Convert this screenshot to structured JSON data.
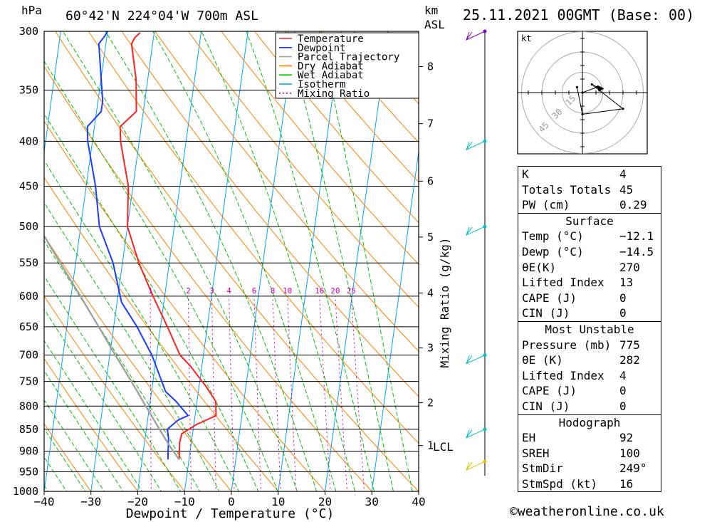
{
  "header": {
    "hpa_label": "hPa",
    "location": "60°42'N  224°04'W  700m  ASL",
    "km_label": "km",
    "asl_label": "ASL",
    "date": "25.11.2021  00GMT  (Base: 00)"
  },
  "axes": {
    "xlabel": "Dewpoint / Temperature (°C)",
    "mixing_label": "Mixing Ratio (g/kg)",
    "lcl_label": "LCL"
  },
  "copyright": "©weatheronline.co.uk",
  "hodograph": {
    "unit_label": "kt",
    "ring_labels": [
      "15",
      "30",
      "45"
    ]
  },
  "colors": {
    "temperature": "#ff2020",
    "dewpoint": "#1a3cff",
    "parcel": "#a0a0a0",
    "dry_adiabat": "#ff8000",
    "wet_adiabat": "#00c000",
    "isotherm": "#00a0ff",
    "mixing_ratio": "#cc00aa",
    "wind_barb": "#00c0c0"
  },
  "chart_data": {
    "type": "line",
    "title": "60°42'N  224°04'W  700m  ASL",
    "xlabel": "Dewpoint / Temperature (°C)",
    "ylabel": "hPa",
    "xlim": [
      -40,
      40
    ],
    "ylim": [
      1000,
      300
    ],
    "x_ticks": [
      -40,
      -30,
      -20,
      -10,
      0,
      10,
      20,
      30,
      40
    ],
    "pressure_ticks": [
      300,
      350,
      400,
      450,
      500,
      550,
      600,
      650,
      700,
      750,
      800,
      850,
      900,
      950,
      1000
    ],
    "km_ticks": [
      {
        "label": "8",
        "p": 329
      },
      {
        "label": "7",
        "p": 382
      },
      {
        "label": "6",
        "p": 444
      },
      {
        "label": "5",
        "p": 514
      },
      {
        "label": "4",
        "p": 595
      },
      {
        "label": "3",
        "p": 687
      },
      {
        "label": "2",
        "p": 793
      },
      {
        "label": "1",
        "p": 887
      }
    ],
    "lcl_pressure": 887,
    "mixing_ratio_labels": [
      "1",
      "2",
      "3",
      "4",
      "6",
      "8",
      "10",
      "16",
      "20",
      "25"
    ],
    "mixing_ratio_label_p": 600,
    "legend": [
      "Temperature",
      "Dewpoint",
      "Parcel Trajectory",
      "Dry Adiabat",
      "Wet Adiabat",
      "Isotherm",
      "Mixing Ratio"
    ],
    "legend_position": "top-right",
    "series": [
      {
        "name": "Temperature",
        "points": [
          [
            920,
            -12.1
          ],
          [
            880,
            -12.5
          ],
          [
            860,
            -12.3
          ],
          [
            840,
            -9.5
          ],
          [
            820,
            -5.5
          ],
          [
            790,
            -6.0
          ],
          [
            760,
            -8.5
          ],
          [
            720,
            -12.5
          ],
          [
            700,
            -15.0
          ],
          [
            650,
            -18.5
          ],
          [
            600,
            -22.5
          ],
          [
            550,
            -26.5
          ],
          [
            500,
            -30.0
          ],
          [
            450,
            -31.0
          ],
          [
            400,
            -34.0
          ],
          [
            385,
            -34.5
          ],
          [
            370,
            -31.5
          ],
          [
            340,
            -32.5
          ],
          [
            310,
            -34.5
          ],
          [
            305,
            -34.0
          ],
          [
            301,
            -33.0
          ]
        ]
      },
      {
        "name": "Dewpoint",
        "points": [
          [
            920,
            -14.5
          ],
          [
            870,
            -15.0
          ],
          [
            850,
            -15.5
          ],
          [
            830,
            -13.5
          ],
          [
            820,
            -11.5
          ],
          [
            790,
            -14.5
          ],
          [
            770,
            -17.0
          ],
          [
            700,
            -21.0
          ],
          [
            650,
            -25.0
          ],
          [
            610,
            -29.0
          ],
          [
            600,
            -29.5
          ],
          [
            550,
            -32.0
          ],
          [
            500,
            -36.0
          ],
          [
            450,
            -38.0
          ],
          [
            400,
            -41.0
          ],
          [
            385,
            -41.5
          ],
          [
            370,
            -39.0
          ],
          [
            360,
            -39.0
          ],
          [
            310,
            -41.5
          ],
          [
            304,
            -40.5
          ],
          [
            300,
            -40.0
          ]
        ]
      },
      {
        "name": "Parcel Trajectory",
        "points": [
          [
            920,
            -12.1
          ],
          [
            887,
            -14.6
          ],
          [
            850,
            -17.2
          ],
          [
            800,
            -20.8
          ],
          [
            750,
            -24.6
          ],
          [
            700,
            -28.8
          ],
          [
            650,
            -33.2
          ],
          [
            600,
            -38.0
          ],
          [
            550,
            -43.3
          ],
          [
            500,
            -49.0
          ],
          [
            450,
            -55.5
          ],
          [
            400,
            -62.5
          ],
          [
            360,
            -68.5
          ]
        ]
      }
    ],
    "hodograph_points_kt": [
      [
        0,
        0
      ],
      [
        11,
        4
      ],
      [
        7,
        6
      ],
      [
        30,
        -12
      ],
      [
        0,
        -16
      ],
      [
        -4,
        4
      ]
    ],
    "wind_levels_hpa": [
      300,
      400,
      500,
      700,
      850,
      925
    ]
  },
  "indices": {
    "k_label": "K",
    "k": "4",
    "tt_label": "Totals Totals",
    "tt": "45",
    "pw_label": "PW (cm)",
    "pw": "0.29"
  },
  "surface": {
    "title": "Surface",
    "temp_label": "Temp (°C)",
    "temp": "−12.1",
    "dewp_label": "Dewp (°C)",
    "dewp": "−14.5",
    "theta_label": "θE(K)",
    "theta": "270",
    "li_label": "Lifted Index",
    "li": "13",
    "cape_label": "CAPE (J)",
    "cape": "0",
    "cin_label": "CIN (J)",
    "cin": "0"
  },
  "most_unstable": {
    "title": "Most Unstable",
    "pressure_label": "Pressure (mb)",
    "pressure": "775",
    "theta_label": "θE (K)",
    "theta": "282",
    "li_label": "Lifted Index",
    "li": "4",
    "cape_label": "CAPE (J)",
    "cape": "0",
    "cin_label": "CIN (J)",
    "cin": "0"
  },
  "hodograph_table": {
    "title": "Hodograph",
    "eh_label": "EH",
    "eh": "92",
    "sreh_label": "SREH",
    "sreh": "100",
    "stmdir_label": "StmDir",
    "stmdir": "249°",
    "stmspd_label": "StmSpd (kt)",
    "stmspd": "16"
  }
}
